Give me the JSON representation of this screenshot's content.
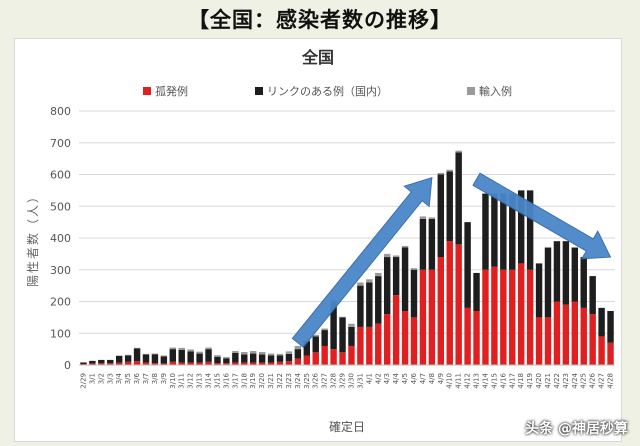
{
  "page": {
    "heading": "【全国：感染者数の推移】",
    "watermark": "头条 @神居秒算"
  },
  "chart_data": {
    "type": "bar",
    "stacked": true,
    "title": "全国",
    "xlabel": "確定日",
    "ylabel": "陽性者数（人）",
    "ylim": [
      0,
      800
    ],
    "yticks": [
      0,
      100,
      200,
      300,
      400,
      500,
      600,
      700,
      800
    ],
    "grid": true,
    "legend_position": "top",
    "categories": [
      "2/29",
      "3/1",
      "3/2",
      "3/3",
      "3/4",
      "3/5",
      "3/6",
      "3/7",
      "3/8",
      "3/9",
      "3/10",
      "3/11",
      "3/12",
      "3/13",
      "3/14",
      "3/15",
      "3/16",
      "3/17",
      "3/18",
      "3/19",
      "3/20",
      "3/21",
      "3/22",
      "3/23",
      "3/24",
      "3/25",
      "3/26",
      "3/27",
      "3/28",
      "3/29",
      "3/30",
      "3/31",
      "4/1",
      "4/2",
      "4/3",
      "4/4",
      "4/5",
      "4/6",
      "4/7",
      "4/8",
      "4/9",
      "4/10",
      "4/11",
      "4/12",
      "4/13",
      "4/14",
      "4/15",
      "4/16",
      "4/17",
      "4/18",
      "4/19",
      "4/20",
      "4/21",
      "4/22",
      "4/23",
      "4/24",
      "4/25",
      "4/26",
      "4/27",
      "4/28"
    ],
    "tick_labels": [
      "2/29",
      "3/1",
      "3/2",
      "3/3",
      "3/4",
      "3/5",
      "3/6",
      "3/7",
      "3/8",
      "3/9",
      "3/10",
      "3/11",
      "3/12",
      "3/13",
      "3/14",
      "3/15",
      "3/16",
      "3/17",
      "3/18",
      "3/19",
      "3/20",
      "3/21",
      "3/22",
      "3/23",
      "3/24",
      "3/25",
      "3/26",
      "3/27",
      "3/28",
      "3/29",
      "3/30",
      "3/31",
      "4/1",
      "4/2",
      "4/3",
      "4/4",
      "4/5",
      "4/6",
      "4/7",
      "4/8",
      "4/9",
      "4/10",
      "4/11",
      "4/12",
      "4/13",
      "4/14",
      "4/15",
      "4/16",
      "4/17",
      "4/18",
      "4/19",
      "4/20",
      "4/21",
      "4/22",
      "4/23",
      "4/24",
      "4/25",
      "4/26",
      "4/27",
      "4/28"
    ],
    "series": [
      {
        "name": "孤発例",
        "color": "#e02020",
        "values": [
          3,
          5,
          6,
          6,
          7,
          10,
          12,
          8,
          6,
          5,
          10,
          8,
          8,
          8,
          10,
          6,
          6,
          8,
          8,
          8,
          8,
          8,
          10,
          12,
          20,
          30,
          40,
          60,
          50,
          40,
          60,
          120,
          120,
          130,
          160,
          220,
          170,
          150,
          300,
          300,
          340,
          390,
          380,
          180,
          170,
          300,
          310,
          300,
          300,
          320,
          300,
          150,
          150,
          200,
          190,
          200,
          180,
          160,
          90,
          70
        ]
      },
      {
        "name": "リンクのある例（国内）",
        "color": "#1e1e1e",
        "values": [
          5,
          8,
          10,
          10,
          22,
          20,
          40,
          25,
          28,
          22,
          40,
          40,
          35,
          28,
          40,
          20,
          15,
          30,
          25,
          28,
          25,
          22,
          20,
          23,
          30,
          45,
          50,
          50,
          150,
          110,
          60,
          130,
          140,
          150,
          180,
          120,
          200,
          150,
          160,
          160,
          260,
          220,
          290,
          270,
          120,
          240,
          230,
          240,
          240,
          230,
          250,
          170,
          220,
          190,
          200,
          170,
          160,
          120,
          90,
          100
        ]
      },
      {
        "name": "輸入例",
        "color": "#9a9a9a",
        "values": [
          0,
          0,
          0,
          0,
          0,
          2,
          2,
          2,
          2,
          3,
          5,
          6,
          6,
          6,
          5,
          5,
          4,
          6,
          8,
          8,
          8,
          6,
          5,
          8,
          10,
          5,
          5,
          5,
          5,
          2,
          10,
          10,
          10,
          10,
          10,
          5,
          5,
          5,
          8,
          5,
          5,
          5,
          5,
          0,
          0,
          0,
          0,
          0,
          0,
          0,
          0,
          0,
          0,
          0,
          0,
          0,
          0,
          0,
          0,
          0
        ]
      }
    ],
    "annotations": [
      {
        "type": "arrow",
        "description": "increase",
        "color": "#4a86c8",
        "from_x": "3/24",
        "from_y": 70,
        "to_x": "4/8",
        "to_y": 590
      },
      {
        "type": "arrow",
        "description": "decrease",
        "color": "#4a86c8",
        "from_x": "4/13",
        "from_y": 585,
        "to_x": "4/28",
        "to_y": 340
      }
    ]
  }
}
